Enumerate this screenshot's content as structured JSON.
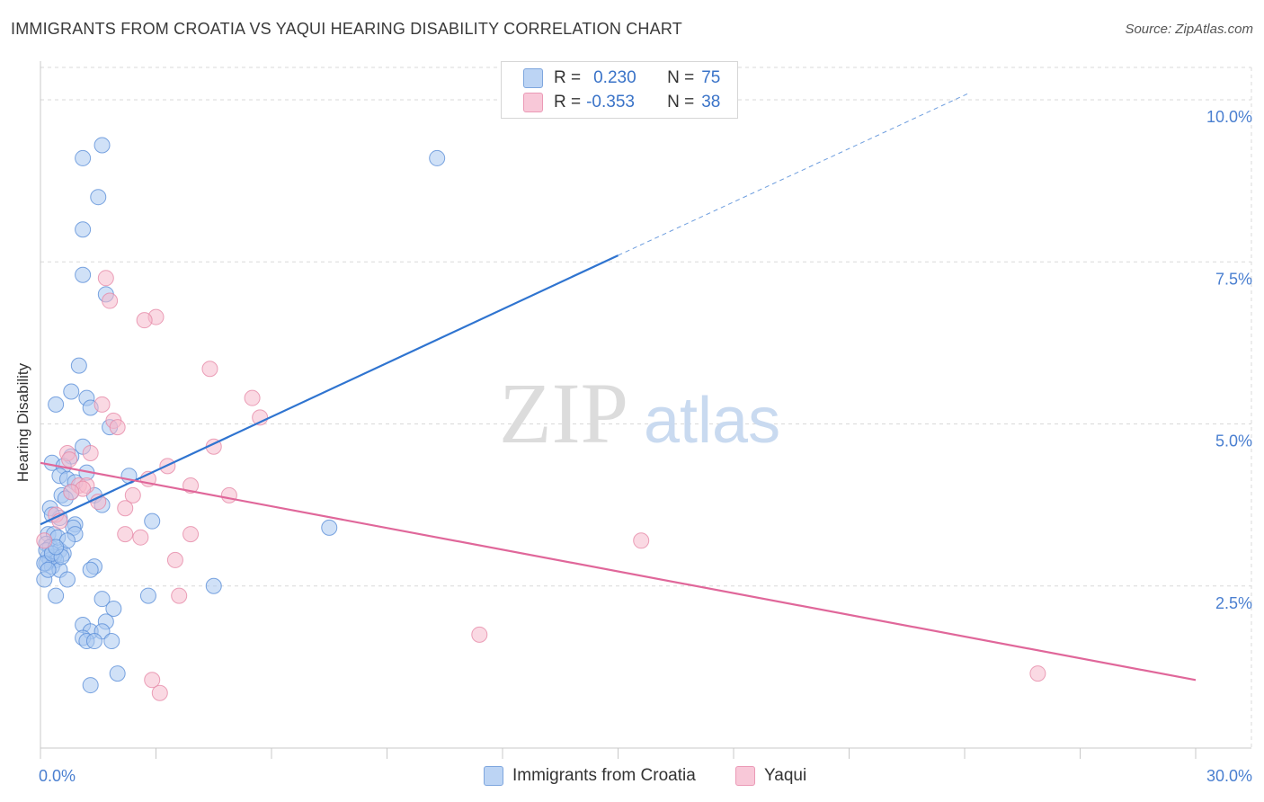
{
  "title": "IMMIGRANTS FROM CROATIA VS YAQUI HEARING DISABILITY CORRELATION CHART",
  "source": "Source: ZipAtlas.com",
  "watermark": {
    "zip": "ZIP",
    "atlas": "atlas"
  },
  "legend": {
    "rows": [
      {
        "r_label": "R =",
        "r_value": "0.230",
        "n_label": "N =",
        "n_value": "75"
      },
      {
        "r_label": "R =",
        "r_value": "-0.353",
        "n_label": "N =",
        "n_value": "38"
      }
    ]
  },
  "bottom_legend": {
    "series1": "Immigrants from Croatia",
    "series2": "Yaqui"
  },
  "colors": {
    "blue_fill": "#a9c8f0",
    "blue_stroke": "#5b8fd8",
    "blue_line": "#2f74d0",
    "pink_fill": "#f5b9cc",
    "pink_stroke": "#e68aa8",
    "pink_line": "#e0679a",
    "tick_text": "#4a7fd0",
    "grid": "#d9d9d9"
  },
  "chart_data": {
    "type": "scatter",
    "title": "IMMIGRANTS FROM CROATIA VS YAQUI HEARING DISABILITY CORRELATION CHART",
    "xlabel": "",
    "ylabel": "Hearing Disability",
    "xlim": [
      0,
      30
    ],
    "ylim": [
      0,
      10.5
    ],
    "x_tick_labels": [
      "0.0%",
      "30.0%"
    ],
    "y_tick_labels": [
      "2.5%",
      "5.0%",
      "7.5%",
      "10.0%"
    ],
    "y_ticks": [
      2.5,
      5.0,
      7.5,
      10.0
    ],
    "series": [
      {
        "name": "Immigrants from Croatia",
        "r": 0.23,
        "n": 75,
        "trend": {
          "x0": 0,
          "y0": 3.45,
          "x1": 15,
          "y1": 7.6,
          "dashed_to_x": 24.1,
          "dashed_to_y": 10.1
        },
        "points": [
          [
            1.6,
            9.3
          ],
          [
            1.1,
            9.1
          ],
          [
            10.3,
            9.1
          ],
          [
            1.5,
            8.5
          ],
          [
            1.1,
            8.0
          ],
          [
            1.1,
            7.3
          ],
          [
            1.7,
            7.0
          ],
          [
            1.0,
            5.9
          ],
          [
            0.8,
            5.5
          ],
          [
            0.4,
            5.3
          ],
          [
            1.2,
            5.4
          ],
          [
            1.3,
            5.25
          ],
          [
            1.8,
            4.95
          ],
          [
            1.1,
            4.65
          ],
          [
            0.8,
            4.5
          ],
          [
            0.3,
            4.4
          ],
          [
            0.6,
            4.35
          ],
          [
            1.2,
            4.25
          ],
          [
            0.5,
            4.2
          ],
          [
            2.3,
            4.2
          ],
          [
            0.7,
            4.15
          ],
          [
            0.9,
            4.1
          ],
          [
            0.8,
            3.95
          ],
          [
            0.55,
            3.9
          ],
          [
            0.65,
            3.85
          ],
          [
            1.4,
            3.9
          ],
          [
            1.6,
            3.75
          ],
          [
            0.25,
            3.7
          ],
          [
            0.5,
            3.55
          ],
          [
            0.3,
            3.6
          ],
          [
            2.9,
            3.5
          ],
          [
            0.9,
            3.45
          ],
          [
            0.85,
            3.4
          ],
          [
            7.5,
            3.4
          ],
          [
            0.2,
            3.3
          ],
          [
            0.35,
            3.3
          ],
          [
            0.9,
            3.3
          ],
          [
            0.15,
            3.15
          ],
          [
            0.25,
            3.1
          ],
          [
            0.5,
            3.05
          ],
          [
            0.6,
            3.0
          ],
          [
            0.35,
            2.95
          ],
          [
            0.2,
            2.95
          ],
          [
            0.25,
            2.9
          ],
          [
            0.4,
            2.9
          ],
          [
            0.15,
            2.85
          ],
          [
            0.3,
            2.8
          ],
          [
            0.5,
            2.75
          ],
          [
            1.4,
            2.8
          ],
          [
            1.3,
            2.75
          ],
          [
            0.1,
            2.6
          ],
          [
            0.7,
            2.6
          ],
          [
            4.5,
            2.5
          ],
          [
            0.4,
            2.35
          ],
          [
            1.6,
            2.3
          ],
          [
            2.8,
            2.35
          ],
          [
            1.9,
            2.15
          ],
          [
            1.7,
            1.95
          ],
          [
            1.1,
            1.9
          ],
          [
            1.3,
            1.8
          ],
          [
            1.6,
            1.8
          ],
          [
            1.1,
            1.7
          ],
          [
            1.2,
            1.65
          ],
          [
            1.4,
            1.65
          ],
          [
            1.85,
            1.65
          ],
          [
            2.0,
            1.15
          ],
          [
            1.3,
            0.97
          ],
          [
            0.15,
            3.05
          ],
          [
            0.45,
            3.25
          ],
          [
            0.7,
            3.2
          ],
          [
            0.1,
            2.85
          ],
          [
            0.3,
            3.0
          ],
          [
            0.55,
            2.95
          ],
          [
            0.4,
            3.1
          ],
          [
            0.2,
            2.75
          ]
        ]
      },
      {
        "name": "Yaqui",
        "r": -0.353,
        "n": 38,
        "trend": {
          "x0": 0,
          "y0": 4.4,
          "x1": 30,
          "y1": 1.05
        },
        "points": [
          [
            1.7,
            7.25
          ],
          [
            1.8,
            6.9
          ],
          [
            3.0,
            6.65
          ],
          [
            2.7,
            6.6
          ],
          [
            4.4,
            5.85
          ],
          [
            5.5,
            5.4
          ],
          [
            5.7,
            5.1
          ],
          [
            1.6,
            5.3
          ],
          [
            1.9,
            5.05
          ],
          [
            2.0,
            4.95
          ],
          [
            4.5,
            4.65
          ],
          [
            0.7,
            4.55
          ],
          [
            1.3,
            4.55
          ],
          [
            0.75,
            4.45
          ],
          [
            3.3,
            4.35
          ],
          [
            2.8,
            4.15
          ],
          [
            3.9,
            4.05
          ],
          [
            1.0,
            4.05
          ],
          [
            1.2,
            4.05
          ],
          [
            1.1,
            4.0
          ],
          [
            0.8,
            3.95
          ],
          [
            4.9,
            3.9
          ],
          [
            2.4,
            3.9
          ],
          [
            1.5,
            3.8
          ],
          [
            2.2,
            3.7
          ],
          [
            0.4,
            3.6
          ],
          [
            0.5,
            3.5
          ],
          [
            3.9,
            3.3
          ],
          [
            2.2,
            3.3
          ],
          [
            2.6,
            3.25
          ],
          [
            15.6,
            3.2
          ],
          [
            3.5,
            2.9
          ],
          [
            3.6,
            2.35
          ],
          [
            11.4,
            1.75
          ],
          [
            25.9,
            1.15
          ],
          [
            2.9,
            1.05
          ],
          [
            3.1,
            0.85
          ],
          [
            0.1,
            3.2
          ]
        ]
      }
    ]
  }
}
